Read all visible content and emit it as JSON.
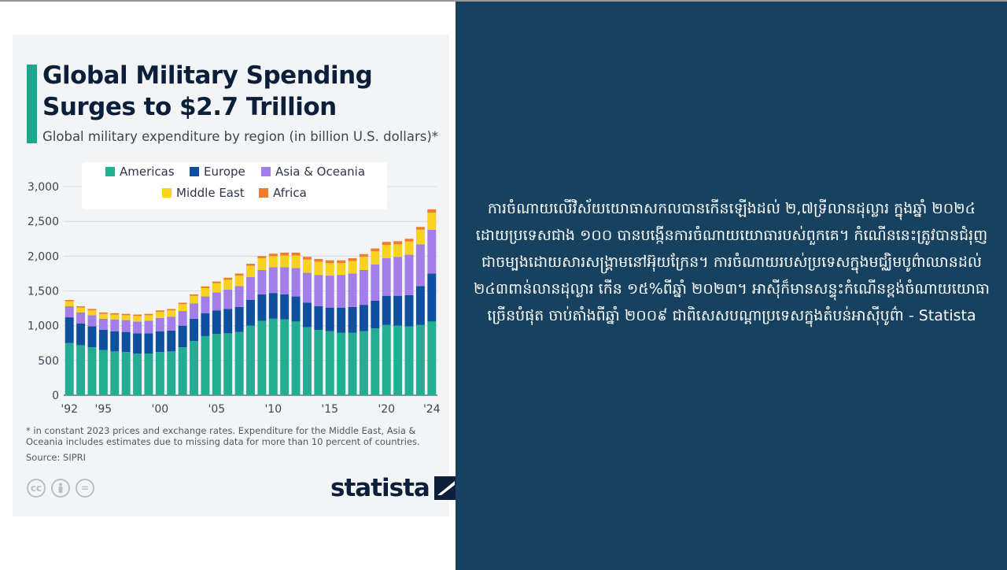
{
  "infographic": {
    "title": "Global Military Spending Surges to $2.7 Trillion",
    "subtitle": "Global military expenditure by region (in billion U.S. dollars)*",
    "footnote": "* in constant 2023 prices and exchange rates. Expenditure for the Middle East, Asia & Oceania includes estimates due to missing data for more than 10 percent of countries.",
    "source": "Source: SIPRI",
    "brand": "statista",
    "license_icons": [
      "cc-icon",
      "by-icon",
      "nd-icon"
    ]
  },
  "caption": {
    "text": "ការចំណាយលើវិស័យយោធាសកលបានកើនឡើងដល់ ២,៧ទ្រីលានដុល្លារ ក្នុងឆ្នាំ ២០២៤ ដោយប្រទេសជាង ១០០ បានបង្កើនការចំណាយយោធារបស់ពួកគេ។ កំណើននេះត្រូវបានជំរុញជាចម្បងដោយសារសង្គ្រាមនៅអ៊ុយក្រែន។ ការចំណាយរបស់ប្រទេសក្នុងមជ្ឈិមបូព៌ាឈានដល់ ២៤៣ពាន់លានដុល្លារ កើន ១៥%ពីឆ្នាំ ២០២៣។ អាស៊ីក៏មានសន្ទុះកំណើនខ្ពង់ចំណាយយោធាច្រើនបំផុត ចាប់តាំងពីឆ្នាំ ២០០៩ ជាពិសេសបណ្តាប្រទេសក្នុងតំបន់អាស៊ីបូព៌ា - Statista"
  },
  "colors": {
    "Americas": "#23ad93",
    "Europe": "#0e4f9e",
    "Asia & Oceania": "#a37ee8",
    "Middle East": "#f7d21e",
    "Africa": "#f07d2c",
    "accent": "#1aa88f",
    "right_panel": "#17425f"
  },
  "chart_data": {
    "type": "bar",
    "stacked": true,
    "x": [
      1992,
      1993,
      1994,
      1995,
      1996,
      1997,
      1998,
      1999,
      2000,
      2001,
      2002,
      2003,
      2004,
      2005,
      2006,
      2007,
      2008,
      2009,
      2010,
      2011,
      2012,
      2013,
      2014,
      2015,
      2016,
      2017,
      2018,
      2019,
      2020,
      2021,
      2022,
      2023,
      2024
    ],
    "x_tick_labels": [
      "'92",
      "'95",
      "'00",
      "'05",
      "'10",
      "'15",
      "'20",
      "'24"
    ],
    "x_tick_years": [
      1992,
      1995,
      2000,
      2005,
      2010,
      2015,
      2020,
      2024
    ],
    "ylim": [
      0,
      3000
    ],
    "yticks": [
      0,
      500,
      1000,
      1500,
      2000,
      2500,
      3000
    ],
    "ytick_labels": [
      "0",
      "500",
      "1,000",
      "1,500",
      "2,000",
      "2,500",
      "3,000"
    ],
    "grid": true,
    "legend_position": "top",
    "series": [
      {
        "name": "Americas",
        "values": [
          750,
          720,
          690,
          650,
          630,
          620,
          600,
          600,
          620,
          630,
          690,
          780,
          850,
          880,
          890,
          910,
          1000,
          1070,
          1100,
          1090,
          1060,
          980,
          940,
          920,
          900,
          900,
          920,
          960,
          1010,
          1000,
          990,
          1010,
          1060
        ]
      },
      {
        "name": "Europe",
        "values": [
          370,
          310,
          300,
          290,
          290,
          290,
          290,
          290,
          300,
          300,
          310,
          320,
          330,
          340,
          350,
          360,
          370,
          380,
          370,
          360,
          360,
          350,
          340,
          340,
          360,
          370,
          380,
          400,
          420,
          430,
          450,
          560,
          690
        ]
      },
      {
        "name": "Asia & Oceania",
        "values": [
          160,
          160,
          160,
          160,
          170,
          170,
          170,
          180,
          190,
          200,
          210,
          220,
          240,
          260,
          280,
          300,
          330,
          350,
          370,
          390,
          410,
          430,
          450,
          460,
          470,
          480,
          500,
          520,
          540,
          560,
          580,
          600,
          630
        ]
      },
      {
        "name": "Middle East",
        "values": [
          70,
          70,
          70,
          70,
          70,
          70,
          80,
          80,
          90,
          90,
          100,
          110,
          120,
          130,
          140,
          150,
          160,
          170,
          160,
          170,
          180,
          190,
          190,
          180,
          170,
          180,
          190,
          190,
          190,
          180,
          190,
          210,
          243
        ]
      },
      {
        "name": "Africa",
        "values": [
          20,
          20,
          20,
          20,
          20,
          20,
          20,
          20,
          20,
          20,
          20,
          20,
          25,
          25,
          30,
          30,
          30,
          30,
          35,
          40,
          40,
          40,
          40,
          40,
          40,
          40,
          40,
          40,
          45,
          45,
          40,
          40,
          50
        ]
      }
    ]
  }
}
